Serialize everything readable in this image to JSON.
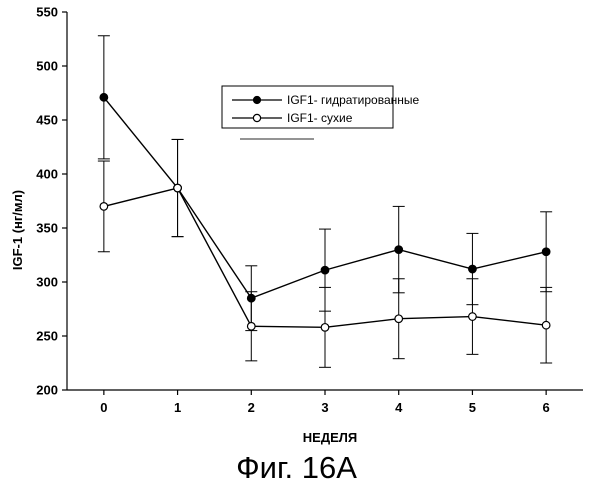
{
  "caption": "Фиг. 16А",
  "chart_data": {
    "type": "line",
    "title": "",
    "xlabel": "НЕДЕЛЯ",
    "ylabel": "IGF-1 (нг/мл)",
    "x": [
      0,
      1,
      2,
      3,
      4,
      5,
      6
    ],
    "xlim": [
      -0.5,
      6.5
    ],
    "ylim": [
      200,
      550
    ],
    "x_ticks": [
      "0",
      "1",
      "2",
      "3",
      "4",
      "5",
      "6"
    ],
    "y_ticks": [
      "200",
      "250",
      "300",
      "350",
      "400",
      "450",
      "500",
      "550"
    ],
    "grid": false,
    "legend_position": "top-center",
    "series": [
      {
        "name": "IGF1- гидратированные",
        "marker": "filled-circle",
        "color": "#000000",
        "values": [
          471,
          387,
          285,
          311,
          330,
          312,
          328
        ],
        "error": [
          57,
          45,
          30,
          38,
          40,
          33,
          37
        ]
      },
      {
        "name": "IGF1- сухие",
        "marker": "open-circle",
        "color": "#000000",
        "values": [
          370,
          387,
          259,
          258,
          266,
          268,
          260
        ],
        "error": [
          42,
          45,
          32,
          37,
          37,
          35,
          35
        ]
      }
    ]
  }
}
